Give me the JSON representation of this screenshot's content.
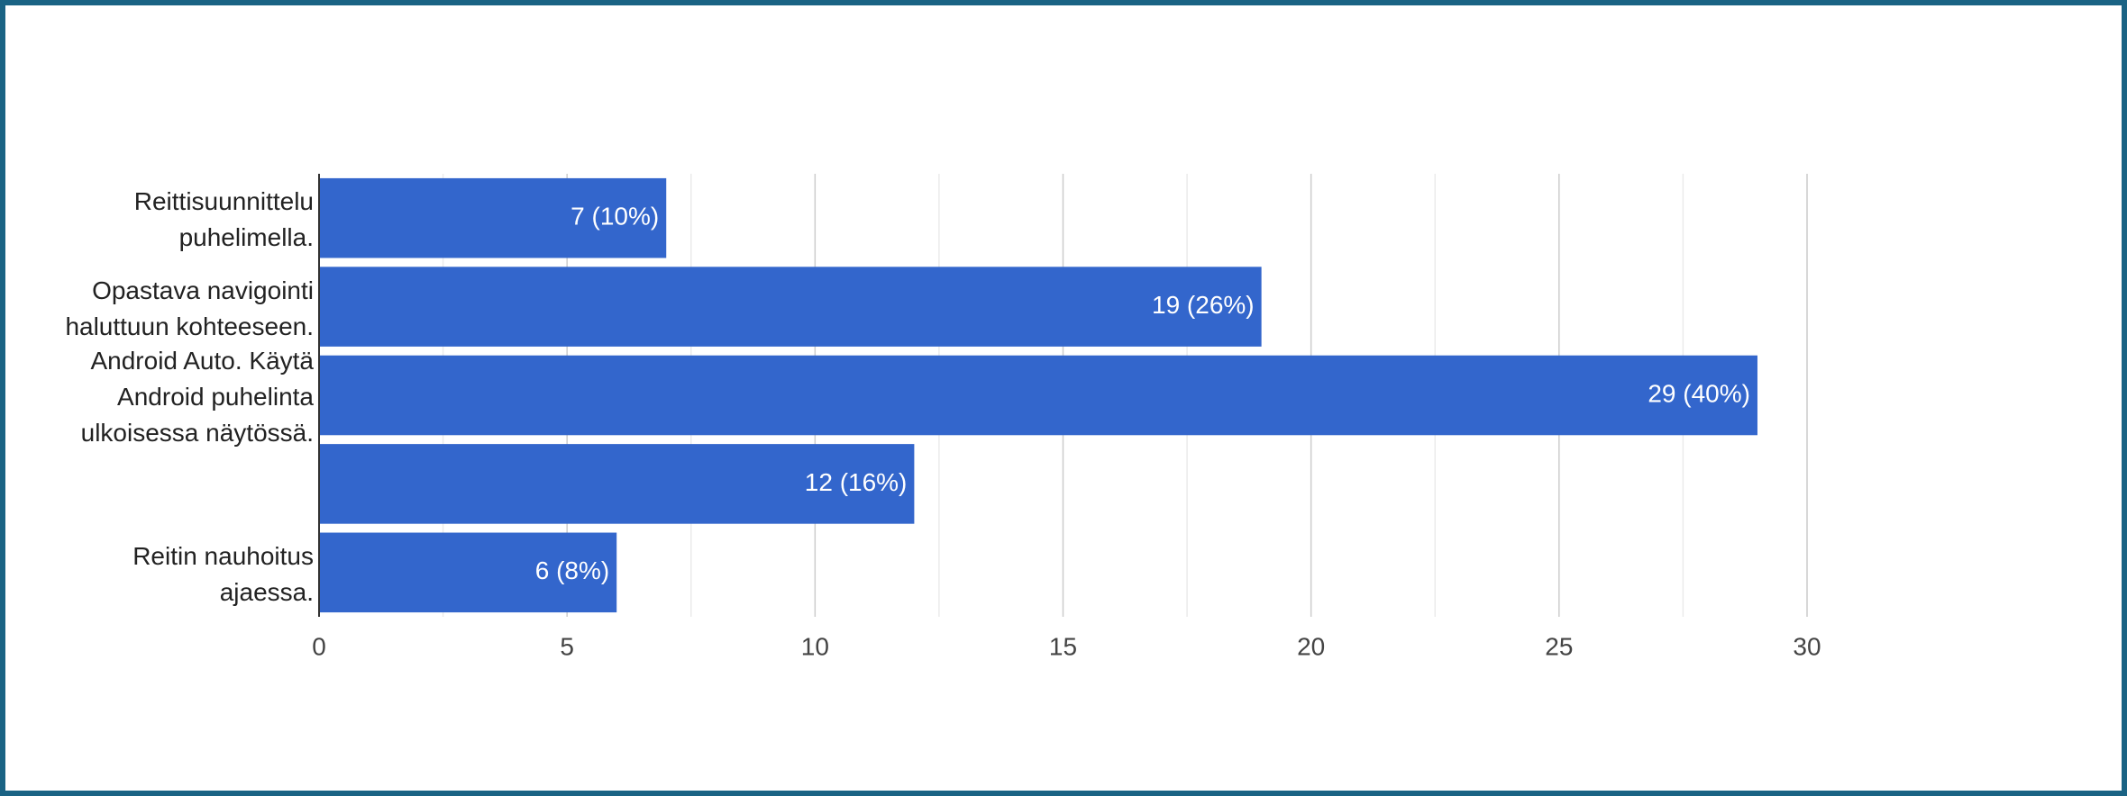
{
  "chart_data": {
    "type": "barh",
    "categories": [
      "Reittisuunnittelu\npuhelimella.",
      "Opastava navigointi\nhaluttuun kohteeseen.",
      "Android Auto. Käytä\nAndroid puhelinta\nulkoisessa näytössä.",
      null,
      "Reitin nauhoitus\najaessa."
    ],
    "values": [
      7,
      19,
      29,
      12,
      6
    ],
    "value_labels": [
      "7 (10%)",
      "19 (26%)",
      "29 (40%)",
      "12 (16%)",
      "6 (8%)"
    ],
    "color": "#3366cc",
    "xlim": [
      0,
      30
    ],
    "xticks": [
      0,
      5,
      10,
      15,
      20,
      25,
      30
    ],
    "grid": true
  }
}
